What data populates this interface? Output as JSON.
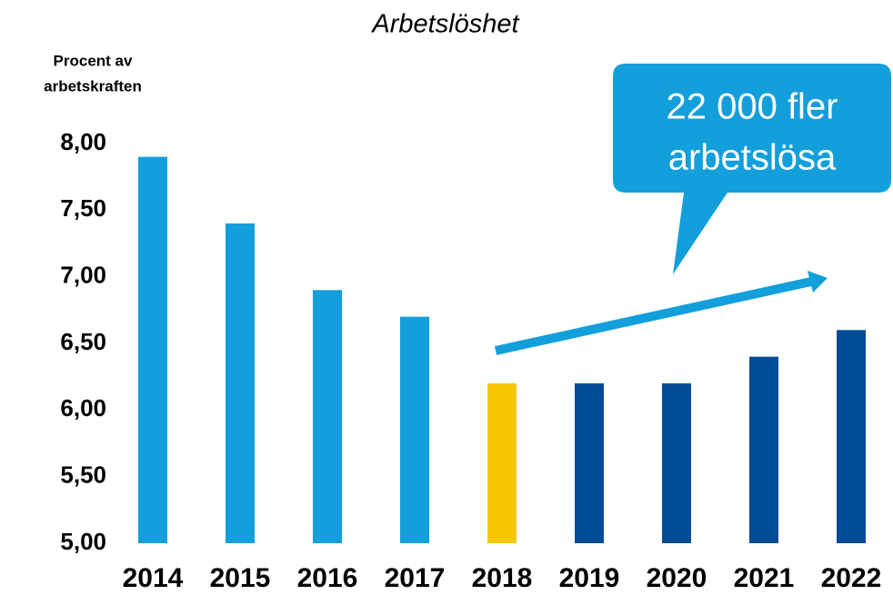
{
  "chart_data": {
    "type": "bar",
    "title": "Arbetslöshet",
    "y_axis_label": [
      "Procent av",
      "arbetskraften"
    ],
    "annotation": [
      "22 000 fler",
      "arbetslösa"
    ],
    "categories": [
      "2014",
      "2015",
      "2016",
      "2017",
      "2018",
      "2019",
      "2020",
      "2021",
      "2022"
    ],
    "values": [
      7.9,
      7.4,
      6.9,
      6.7,
      6.2,
      6.2,
      6.2,
      6.4,
      6.6
    ],
    "colors": [
      "#129fdb",
      "#129fdb",
      "#129fdb",
      "#129fdb",
      "#f8c600",
      "#004c97",
      "#004c97",
      "#004c97",
      "#004c97"
    ],
    "ylim": [
      5,
      8
    ],
    "yticks": [
      {
        "value": 5,
        "label": "5,00"
      },
      {
        "value": 5.5,
        "label": "5,50"
      },
      {
        "value": 6,
        "label": "6,00"
      },
      {
        "value": 6.5,
        "label": "6,50"
      },
      {
        "value": 7,
        "label": "7,00"
      },
      {
        "value": 7.5,
        "label": "7,50"
      },
      {
        "value": 8,
        "label": "8,00"
      }
    ],
    "grid": false
  }
}
